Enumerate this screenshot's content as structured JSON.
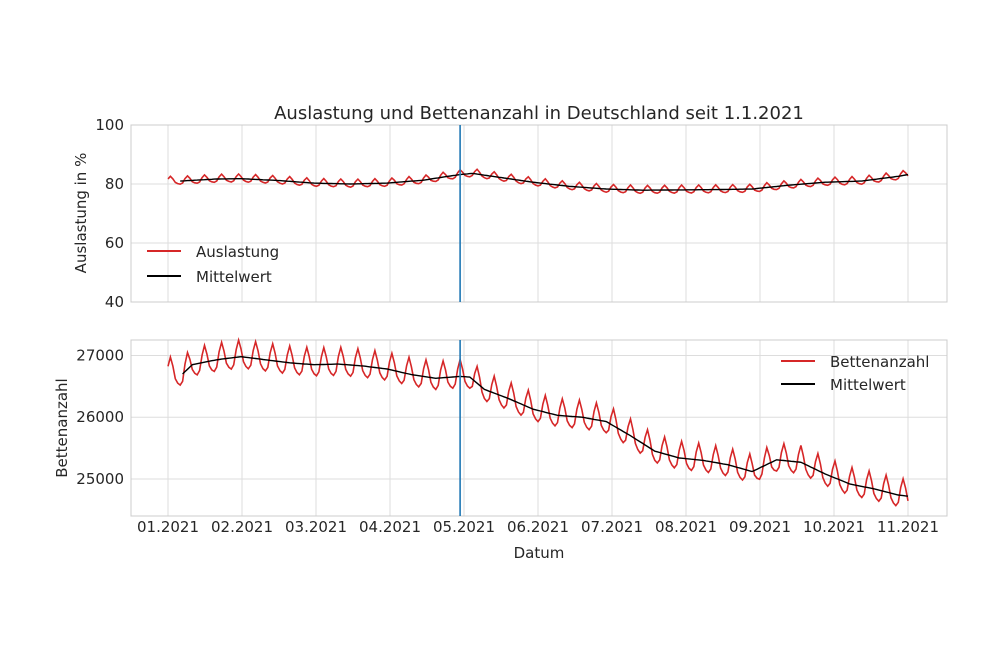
{
  "chart_data": {
    "type": "line",
    "title": "Auslastung und Bettenanzahl in Deutschland seit 1.1.2021",
    "xlabel": "Datum",
    "x_ticks": [
      "01.2021",
      "02.2021",
      "03.2021",
      "04.2021",
      "05.2021",
      "06.2021",
      "07.2021",
      "08.2021",
      "09.2021",
      "10.2021",
      "11.2021"
    ],
    "x_range_days": [
      0,
      304
    ],
    "vertical_marker_day": 120,
    "colors": {
      "series": "#d62728",
      "mean": "#000000",
      "marker": "#1f77b4"
    },
    "panels": [
      {
        "ylabel": "Auslastung in %",
        "ylim": [
          40,
          100
        ],
        "y_ticks": [
          "40",
          "60",
          "80",
          "100"
        ],
        "y_tick_values": [
          40,
          60,
          80,
          100
        ],
        "legend_position": "lower-left",
        "weekly_amplitude": 1.3,
        "series": [
          {
            "name": "Auslastung",
            "kind": "daily"
          },
          {
            "name": "Mittelwert",
            "kind": "mean",
            "x": [
              5,
              20,
              30,
              45,
              60,
              75,
              90,
              105,
              115,
              120,
              125,
              135,
              150,
              165,
              180,
              195,
              210,
              225,
              240,
              255,
              270,
              285,
              300,
              304
            ],
            "values": [
              81.0,
              81.7,
              81.8,
              81.2,
              80.3,
              80.0,
              80.3,
              81.3,
              82.6,
              83.2,
              83.6,
              82.4,
              80.6,
              79.2,
              78.3,
              77.9,
              78.0,
              78.1,
              78.3,
              79.6,
              80.6,
              81.0,
              82.6,
              83.2
            ]
          }
        ]
      },
      {
        "ylabel": "Bettenanzahl",
        "ylim": [
          24400,
          27250
        ],
        "y_ticks": [
          "25000",
          "26000",
          "27000"
        ],
        "y_tick_values": [
          25000,
          26000,
          27000
        ],
        "legend_position": "upper-right",
        "weekly_amplitude": 220,
        "series": [
          {
            "name": "Bettenanzahl",
            "kind": "daily"
          },
          {
            "name": "Mittelwert",
            "kind": "mean",
            "x": [
              6,
              10,
              20,
              30,
              40,
              50,
              60,
              70,
              80,
              90,
              100,
              110,
              120,
              124,
              130,
              140,
              150,
              160,
              170,
              180,
              190,
              200,
              210,
              220,
              230,
              240,
              250,
              260,
              270,
              280,
              290,
              300,
              304
            ],
            "values": [
              26700,
              26850,
              26930,
              26980,
              26930,
              26880,
              26850,
              26860,
              26830,
              26780,
              26690,
              26630,
              26660,
              26650,
              26450,
              26300,
              26130,
              26030,
              26000,
              25930,
              25700,
              25450,
              25340,
              25300,
              25230,
              25120,
              25310,
              25270,
              25080,
              24920,
              24840,
              24740,
              24720
            ]
          }
        ]
      }
    ]
  }
}
